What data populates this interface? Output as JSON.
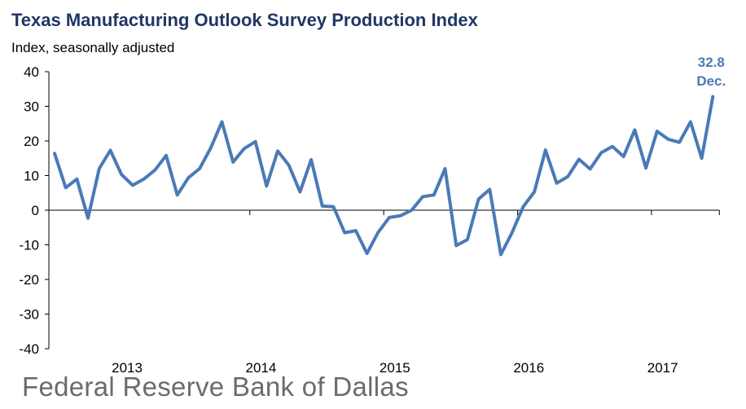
{
  "chart_data": {
    "type": "line",
    "title": "Texas Manufacturing Outlook Survey Production Index",
    "ylabel": "Index, seasonally adjusted",
    "ylim": [
      -40,
      40
    ],
    "yticks": [
      -40,
      -30,
      -20,
      -10,
      0,
      10,
      20,
      30,
      40
    ],
    "xtick_labels": [
      "2013",
      "2014",
      "2015",
      "2016",
      "2017"
    ],
    "x_start": "2012-07",
    "x_end": "2017-12",
    "series": [
      {
        "color": "#4a7ab7",
        "values": [
          16.4,
          6.5,
          9.0,
          -2.3,
          12.0,
          17.3,
          10.3,
          7.2,
          9.0,
          11.6,
          15.8,
          4.4,
          9.4,
          12.0,
          18.0,
          25.5,
          13.9,
          17.8,
          19.8,
          7.0,
          17.1,
          13.0,
          5.3,
          14.6,
          1.2,
          1.0,
          -6.5,
          -5.9,
          -12.5,
          -6.4,
          -2.1,
          -1.6,
          0.0,
          3.9,
          4.4,
          12.0,
          -10.2,
          -8.5,
          3.2,
          6.0,
          -12.8,
          -6.5,
          1.0,
          5.3,
          17.4,
          7.8,
          9.7,
          14.7,
          11.9,
          16.6,
          18.4,
          15.5,
          23.2,
          12.2,
          22.8,
          20.5,
          19.6,
          25.5,
          15.0,
          32.8
        ]
      }
    ],
    "annotation": {
      "value": "32.8",
      "label": "Dec."
    }
  },
  "footer": "Federal Reserve Bank of Dallas"
}
